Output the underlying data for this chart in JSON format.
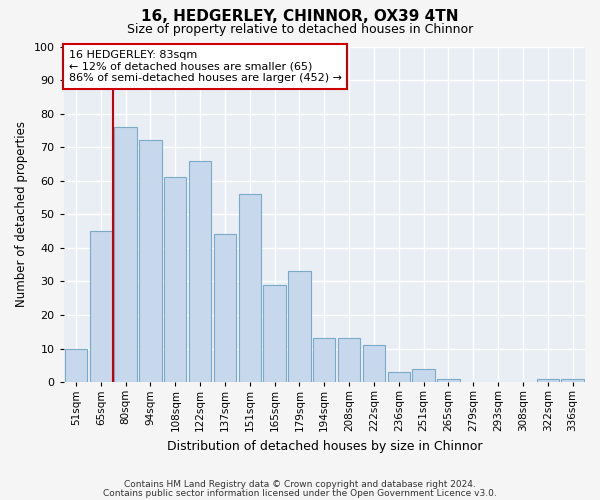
{
  "title1": "16, HEDGERLEY, CHINNOR, OX39 4TN",
  "title2": "Size of property relative to detached houses in Chinnor",
  "xlabel": "Distribution of detached houses by size in Chinnor",
  "ylabel": "Number of detached properties",
  "categories": [
    "51sqm",
    "65sqm",
    "80sqm",
    "94sqm",
    "108sqm",
    "122sqm",
    "137sqm",
    "151sqm",
    "165sqm",
    "179sqm",
    "194sqm",
    "208sqm",
    "222sqm",
    "236sqm",
    "251sqm",
    "265sqm",
    "279sqm",
    "293sqm",
    "308sqm",
    "322sqm",
    "336sqm"
  ],
  "values": [
    10,
    45,
    76,
    72,
    61,
    66,
    44,
    56,
    29,
    33,
    13,
    13,
    11,
    3,
    4,
    1,
    0,
    0,
    0,
    1,
    1
  ],
  "bar_color": "#c8d8ec",
  "bar_edge_color": "#7aaac8",
  "marker_label": "16 HEDGERLEY: 83sqm",
  "annotation_line1": "← 12% of detached houses are smaller (65)",
  "annotation_line2": "86% of semi-detached houses are larger (452) →",
  "footer1": "Contains HM Land Registry data © Crown copyright and database right 2024.",
  "footer2": "Contains public sector information licensed under the Open Government Licence v3.0.",
  "ylim": [
    0,
    100
  ],
  "bg_color": "#f5f5f5",
  "plot_bg": "#e8eef4",
  "grid_color": "#ffffff",
  "vline_color": "#cc0000",
  "box_edge_color": "#cc0000",
  "box_fill_color": "#ffffff"
}
